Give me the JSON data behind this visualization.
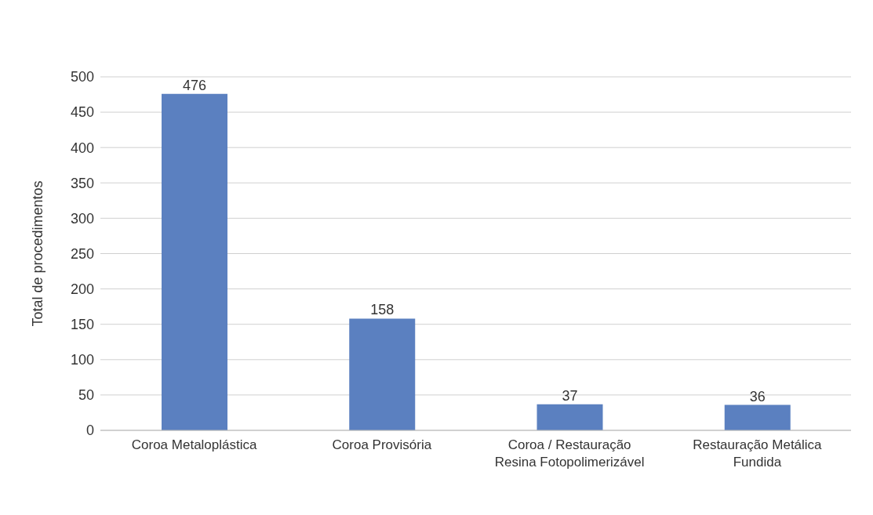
{
  "chart_data": {
    "type": "bar",
    "categories": [
      "Coroa Metaloplástica",
      "Coroa Provisória",
      "Coroa / Restauração Resina Fotopolimerizável",
      "Restauração Metálica Fundida"
    ],
    "values": [
      476,
      158,
      37,
      36
    ],
    "color": "#5b80c0",
    "ylabel": "Total de procedimentos",
    "ylim": [
      0,
      500
    ],
    "yticks": [
      0,
      50,
      100,
      150,
      200,
      250,
      300,
      350,
      400,
      450,
      500
    ],
    "grid": "y",
    "data_labels": true
  }
}
